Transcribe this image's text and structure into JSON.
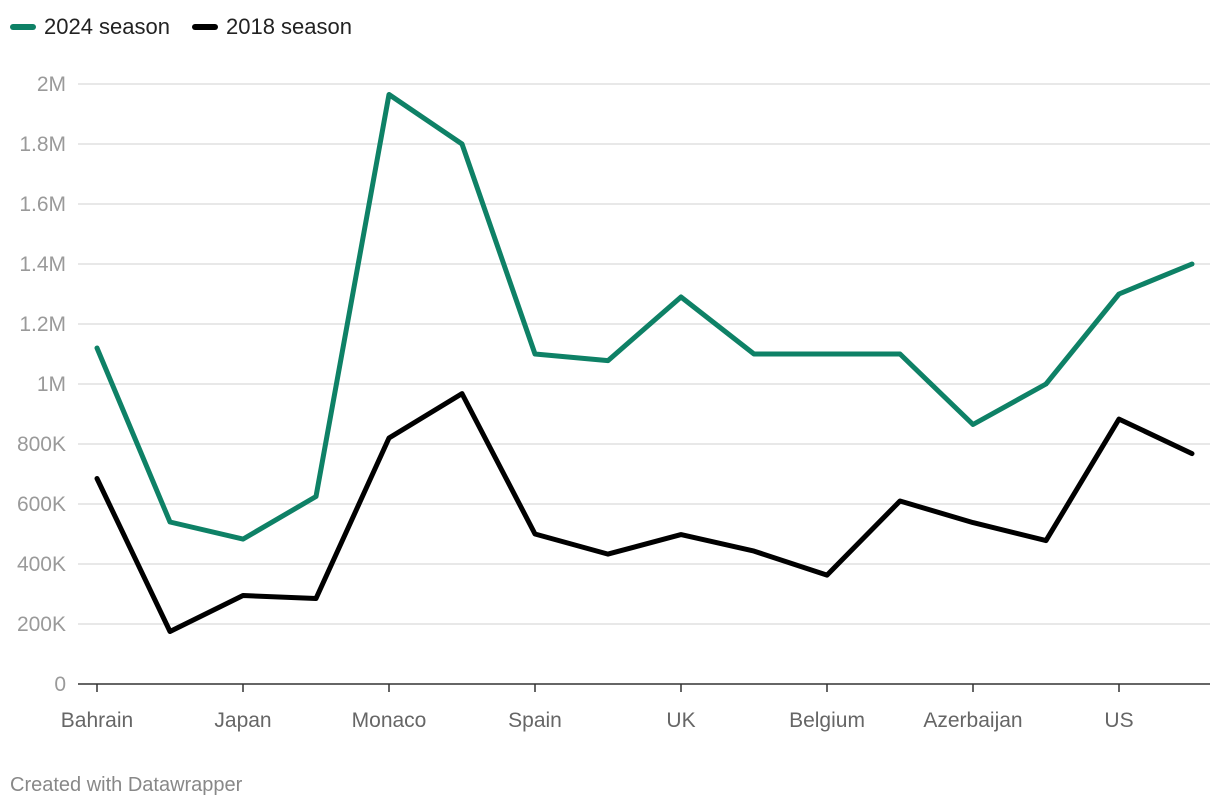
{
  "chart_data": {
    "type": "line",
    "title": "",
    "xlabel": "",
    "ylabel": "",
    "ylim": [
      0,
      2000000
    ],
    "yticks": [
      {
        "value": 0,
        "label": "0"
      },
      {
        "value": 200000,
        "label": "200K"
      },
      {
        "value": 400000,
        "label": "400K"
      },
      {
        "value": 600000,
        "label": "600K"
      },
      {
        "value": 800000,
        "label": "800K"
      },
      {
        "value": 1000000,
        "label": "1M"
      },
      {
        "value": 1200000,
        "label": "1.2M"
      },
      {
        "value": 1400000,
        "label": "1.4M"
      },
      {
        "value": 1600000,
        "label": "1.6M"
      },
      {
        "value": 1800000,
        "label": "1.8M"
      },
      {
        "value": 2000000,
        "label": "2M"
      }
    ],
    "point_count": 16,
    "xticks": [
      {
        "index": 0,
        "label": "Bahrain"
      },
      {
        "index": 2,
        "label": "Japan"
      },
      {
        "index": 4,
        "label": "Monaco"
      },
      {
        "index": 6,
        "label": "Spain"
      },
      {
        "index": 8,
        "label": "UK"
      },
      {
        "index": 10,
        "label": "Belgium"
      },
      {
        "index": 12,
        "label": "Azerbaijan"
      },
      {
        "index": 14,
        "label": "US"
      }
    ],
    "series": [
      {
        "name": "2024 season",
        "color": "#0e8166",
        "values": [
          1120000,
          540000,
          483000,
          625000,
          1965000,
          1800000,
          1100000,
          1078000,
          1290000,
          1100000,
          1100000,
          1100000,
          865000,
          1000000,
          1300000,
          1400000
        ]
      },
      {
        "name": "2018 season",
        "color": "#000000",
        "values": [
          685000,
          175000,
          295000,
          285000,
          820000,
          968000,
          500000,
          433000,
          498000,
          443000,
          363000,
          610000,
          538000,
          478000,
          883000,
          768000
        ]
      }
    ]
  },
  "legend": {
    "items": [
      {
        "label": "2024 season",
        "color": "#0e8166"
      },
      {
        "label": "2018 season",
        "color": "#000000"
      }
    ]
  },
  "footer": {
    "text": "Created with Datawrapper"
  }
}
